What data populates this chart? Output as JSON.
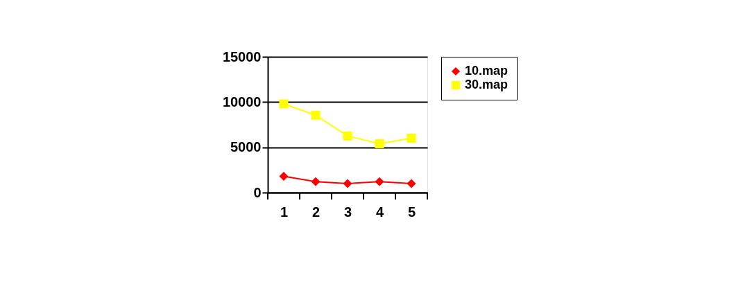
{
  "chart_data": {
    "type": "line",
    "categories": [
      "1",
      "2",
      "3",
      "4",
      "5"
    ],
    "series": [
      {
        "name": "10.map",
        "color": "#ff0000",
        "marker": "diamond",
        "values": [
          1800,
          1200,
          1000,
          1200,
          1000
        ]
      },
      {
        "name": "30.map",
        "color": "#ffff00",
        "marker": "square",
        "values": [
          9800,
          8550,
          6250,
          5400,
          6000
        ]
      }
    ],
    "ylim": [
      0,
      15000
    ],
    "yticks": [
      0,
      5000,
      10000,
      15000
    ],
    "grid": "y",
    "legend": "right",
    "line_style": "solid"
  }
}
